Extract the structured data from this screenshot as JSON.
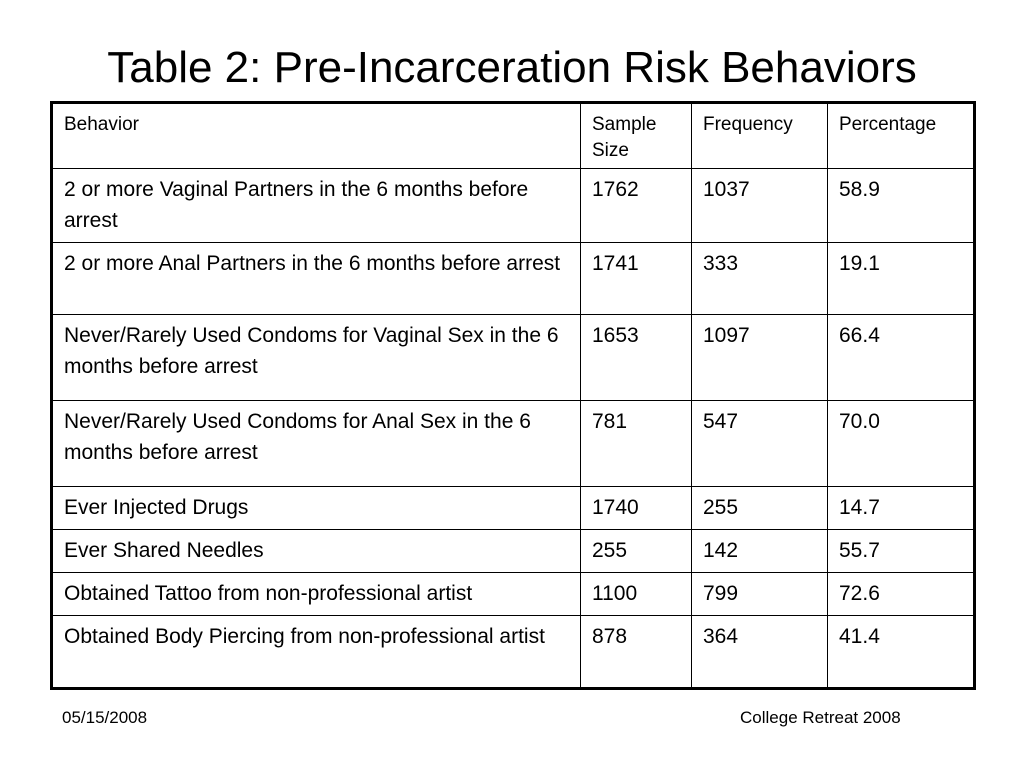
{
  "title": "Table 2: Pre-Incarceration Risk Behaviors",
  "table": {
    "headers": [
      "Behavior",
      "Sample Size",
      "Frequency",
      "Percentage"
    ],
    "rows": [
      [
        "2 or more Vaginal Partners in the 6 months before arrest",
        "1762",
        "1037",
        "58.9"
      ],
      [
        "2 or more Anal Partners in the 6 months before arrest",
        "1741",
        "333",
        "19.1"
      ],
      [
        "Never/Rarely Used Condoms for Vaginal Sex in the 6 months before arrest",
        "1653",
        "1097",
        "66.4"
      ],
      [
        "Never/Rarely Used Condoms for Anal Sex in the 6 months before arrest",
        "781",
        "547",
        "70.0"
      ],
      [
        "Ever Injected Drugs",
        "1740",
        "255",
        "14.7"
      ],
      [
        "Ever Shared Needles",
        "255",
        "142",
        "55.7"
      ],
      [
        "Obtained Tattoo from non-professional artist",
        "1100",
        "799",
        "72.6"
      ],
      [
        "Obtained Body Piercing from non-professional artist",
        "878",
        "364",
        "41.4"
      ]
    ]
  },
  "footer": {
    "date": "05/15/2008",
    "event": "College Retreat 2008"
  }
}
